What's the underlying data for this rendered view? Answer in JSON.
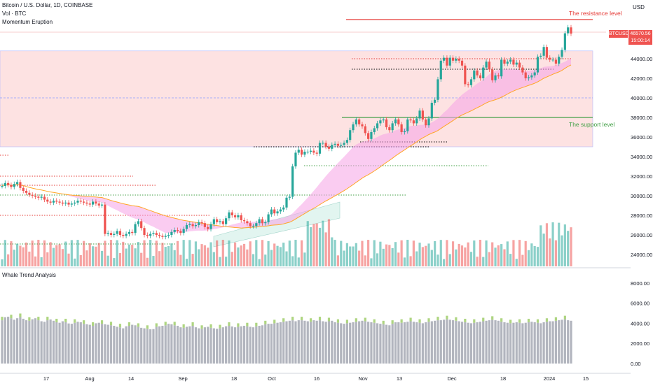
{
  "header": {
    "symbol_line": "Bitcoin / U.S. Dollar, 1D, COINBASE",
    "indicator_1": "Vol · BTC",
    "indicator_2": "Momentum Eruption",
    "currency": "USD"
  },
  "annotations": {
    "resistance": "The resistance level",
    "support": "The support level"
  },
  "price_tag": {
    "symbol": "BTCUSD",
    "price": "46570.56",
    "countdown": "15:00:14"
  },
  "lower_pane": {
    "title": "Whale Trend Analysis"
  },
  "colors": {
    "up": "#26a69a",
    "down": "#ef5350",
    "resistance": "#e53935",
    "support": "#43a047",
    "zone": "#fde2e2",
    "cloud": "#f5a3e6",
    "gray_bar": "#b2b5be",
    "cyan": "#26c6da",
    "green_light": "#aed581"
  },
  "chart_data": [
    {
      "type": "candlestick",
      "title": "Bitcoin / U.S. Dollar, 1D, COINBASE",
      "ylim": [
        23000,
        49500
      ],
      "y_ticks": [
        "44000.00",
        "42000.00",
        "40000.00",
        "38000.00",
        "36000.00",
        "34000.00",
        "32000.00",
        "30000.00",
        "28000.00",
        "26000.00",
        "24000.00"
      ],
      "x_ticks": [
        "17",
        "Aug",
        "14",
        "Sep",
        "18",
        "Oct",
        "16",
        "Nov",
        "13",
        "Dec",
        "18",
        "2024",
        "15"
      ],
      "resistance_level": 48000,
      "support_level": 38000,
      "zone": [
        35000,
        44800
      ],
      "last_price": 46570.56,
      "close": [
        31000,
        31300,
        31100,
        30900,
        31200,
        31400,
        30800,
        30500,
        30300,
        30100,
        30000,
        29900,
        29800,
        29900,
        29600,
        29400,
        29300,
        29500,
        29400,
        29300,
        29200,
        29300,
        29100,
        29200,
        29300,
        29500,
        29400,
        29300,
        29200,
        29100,
        29400,
        29200,
        29000,
        29100,
        26100,
        26200,
        26000,
        26100,
        26400,
        26000,
        25900,
        26100,
        26300,
        26200,
        27100,
        27400,
        26700,
        26000,
        25900,
        26100,
        26200,
        26000,
        25900,
        25800,
        25900,
        26000,
        26300,
        26500,
        26400,
        26200,
        26600,
        27000,
        27100,
        26900,
        27000,
        27300,
        27200,
        26800,
        26600,
        27100,
        27600,
        27300,
        27400,
        27100,
        27700,
        28300,
        28000,
        27800,
        28000,
        27500,
        27400,
        27200,
        26900,
        26900,
        27200,
        27600,
        27200,
        27300,
        28100,
        28600,
        28200,
        28400,
        28600,
        28800,
        29800,
        29900,
        33000,
        34400,
        34700,
        34200,
        34500,
        34500,
        34600,
        34400,
        34300,
        35400,
        35400,
        35000,
        34800,
        35200,
        35300,
        35100,
        35200,
        35400,
        35700,
        36700,
        37300,
        37800,
        37300,
        37100,
        36400,
        35800,
        36500,
        36900,
        37400,
        37700,
        37800,
        37000,
        36700,
        37400,
        37800,
        37300,
        36500,
        36600,
        37800,
        37700,
        37400,
        37900,
        38700,
        37800,
        37200,
        37900,
        39500,
        39800,
        41900,
        43800,
        44100,
        43300,
        44100,
        43800,
        44000,
        43800,
        43300,
        41400,
        41300,
        41900,
        42800,
        42300,
        42000,
        43100,
        43700,
        42900,
        41800,
        42300,
        42200,
        43900,
        43500,
        43700,
        43900,
        43400,
        43600,
        43100,
        42600,
        42000,
        42100,
        42300,
        42600,
        44200,
        44300,
        45200,
        44100,
        43900,
        43900,
        43500,
        44200,
        44900,
        46600,
        47200,
        46570
      ]
    },
    {
      "type": "bar",
      "title": "Whale Trend Analysis",
      "ylim": [
        -500,
        9000
      ],
      "y_ticks": [
        "8000.00",
        "6000.00",
        "4000.00",
        "2000.00",
        "0.00"
      ],
      "values": [
        4300,
        4600,
        4650,
        4500,
        4350,
        4500,
        4620,
        4450,
        4300,
        4250,
        4400,
        4500,
        4300,
        4200,
        4150,
        4300,
        4380,
        4250,
        4100,
        4050,
        4200,
        4100,
        3980,
        3950,
        4050,
        4150,
        4100,
        3950,
        3900,
        3850,
        3750,
        4000,
        4050,
        3950,
        3900,
        3850,
        3800,
        3750,
        3650,
        3600,
        3500,
        3700,
        3750,
        3850,
        3800,
        3650,
        3550,
        3500,
        3450,
        3400,
        3420,
        3650,
        3700,
        3750,
        3800,
        3950,
        3900,
        3800,
        3750,
        3600,
        3550,
        3650,
        3700,
        3750,
        3600,
        3500,
        3450,
        3600,
        3650,
        3550,
        3500,
        3450,
        3500,
        3600,
        3700,
        3750,
        3680,
        3600,
        3650,
        3700,
        3750,
        3700,
        3650,
        3600,
        3700,
        3750,
        3800,
        3900,
        3950,
        3950,
        4000,
        4050,
        4100,
        4150,
        4200,
        4250,
        4300,
        4200,
        4300,
        4300,
        4250,
        4200,
        4150,
        4300,
        4250,
        4300,
        4200,
        4150,
        4200,
        4250,
        4100,
        4050,
        4000,
        3950,
        4000,
        4050,
        4100,
        4150,
        4200,
        4250,
        4200,
        4150,
        4100,
        4050,
        4000,
        3950,
        3900,
        3850,
        3800,
        3950,
        4100,
        4100,
        4050,
        4100,
        4150,
        4200,
        4150,
        4100,
        4050,
        4000,
        4100,
        4150,
        4200,
        4250,
        4300,
        4300,
        4350,
        4400,
        4350,
        4300,
        4250,
        4200,
        4150,
        4100,
        4050,
        4000,
        4050,
        4100,
        4150,
        4200,
        4250,
        4300,
        4350,
        4300,
        4250,
        4150,
        4100,
        4050,
        4000,
        4050,
        4100,
        4050,
        4000,
        4050,
        4100,
        4150,
        4100,
        4050,
        4000,
        4100,
        4150,
        4200,
        4200,
        4250,
        4300,
        4350,
        4400,
        4300,
        4250,
        4300,
        4350
      ]
    }
  ]
}
